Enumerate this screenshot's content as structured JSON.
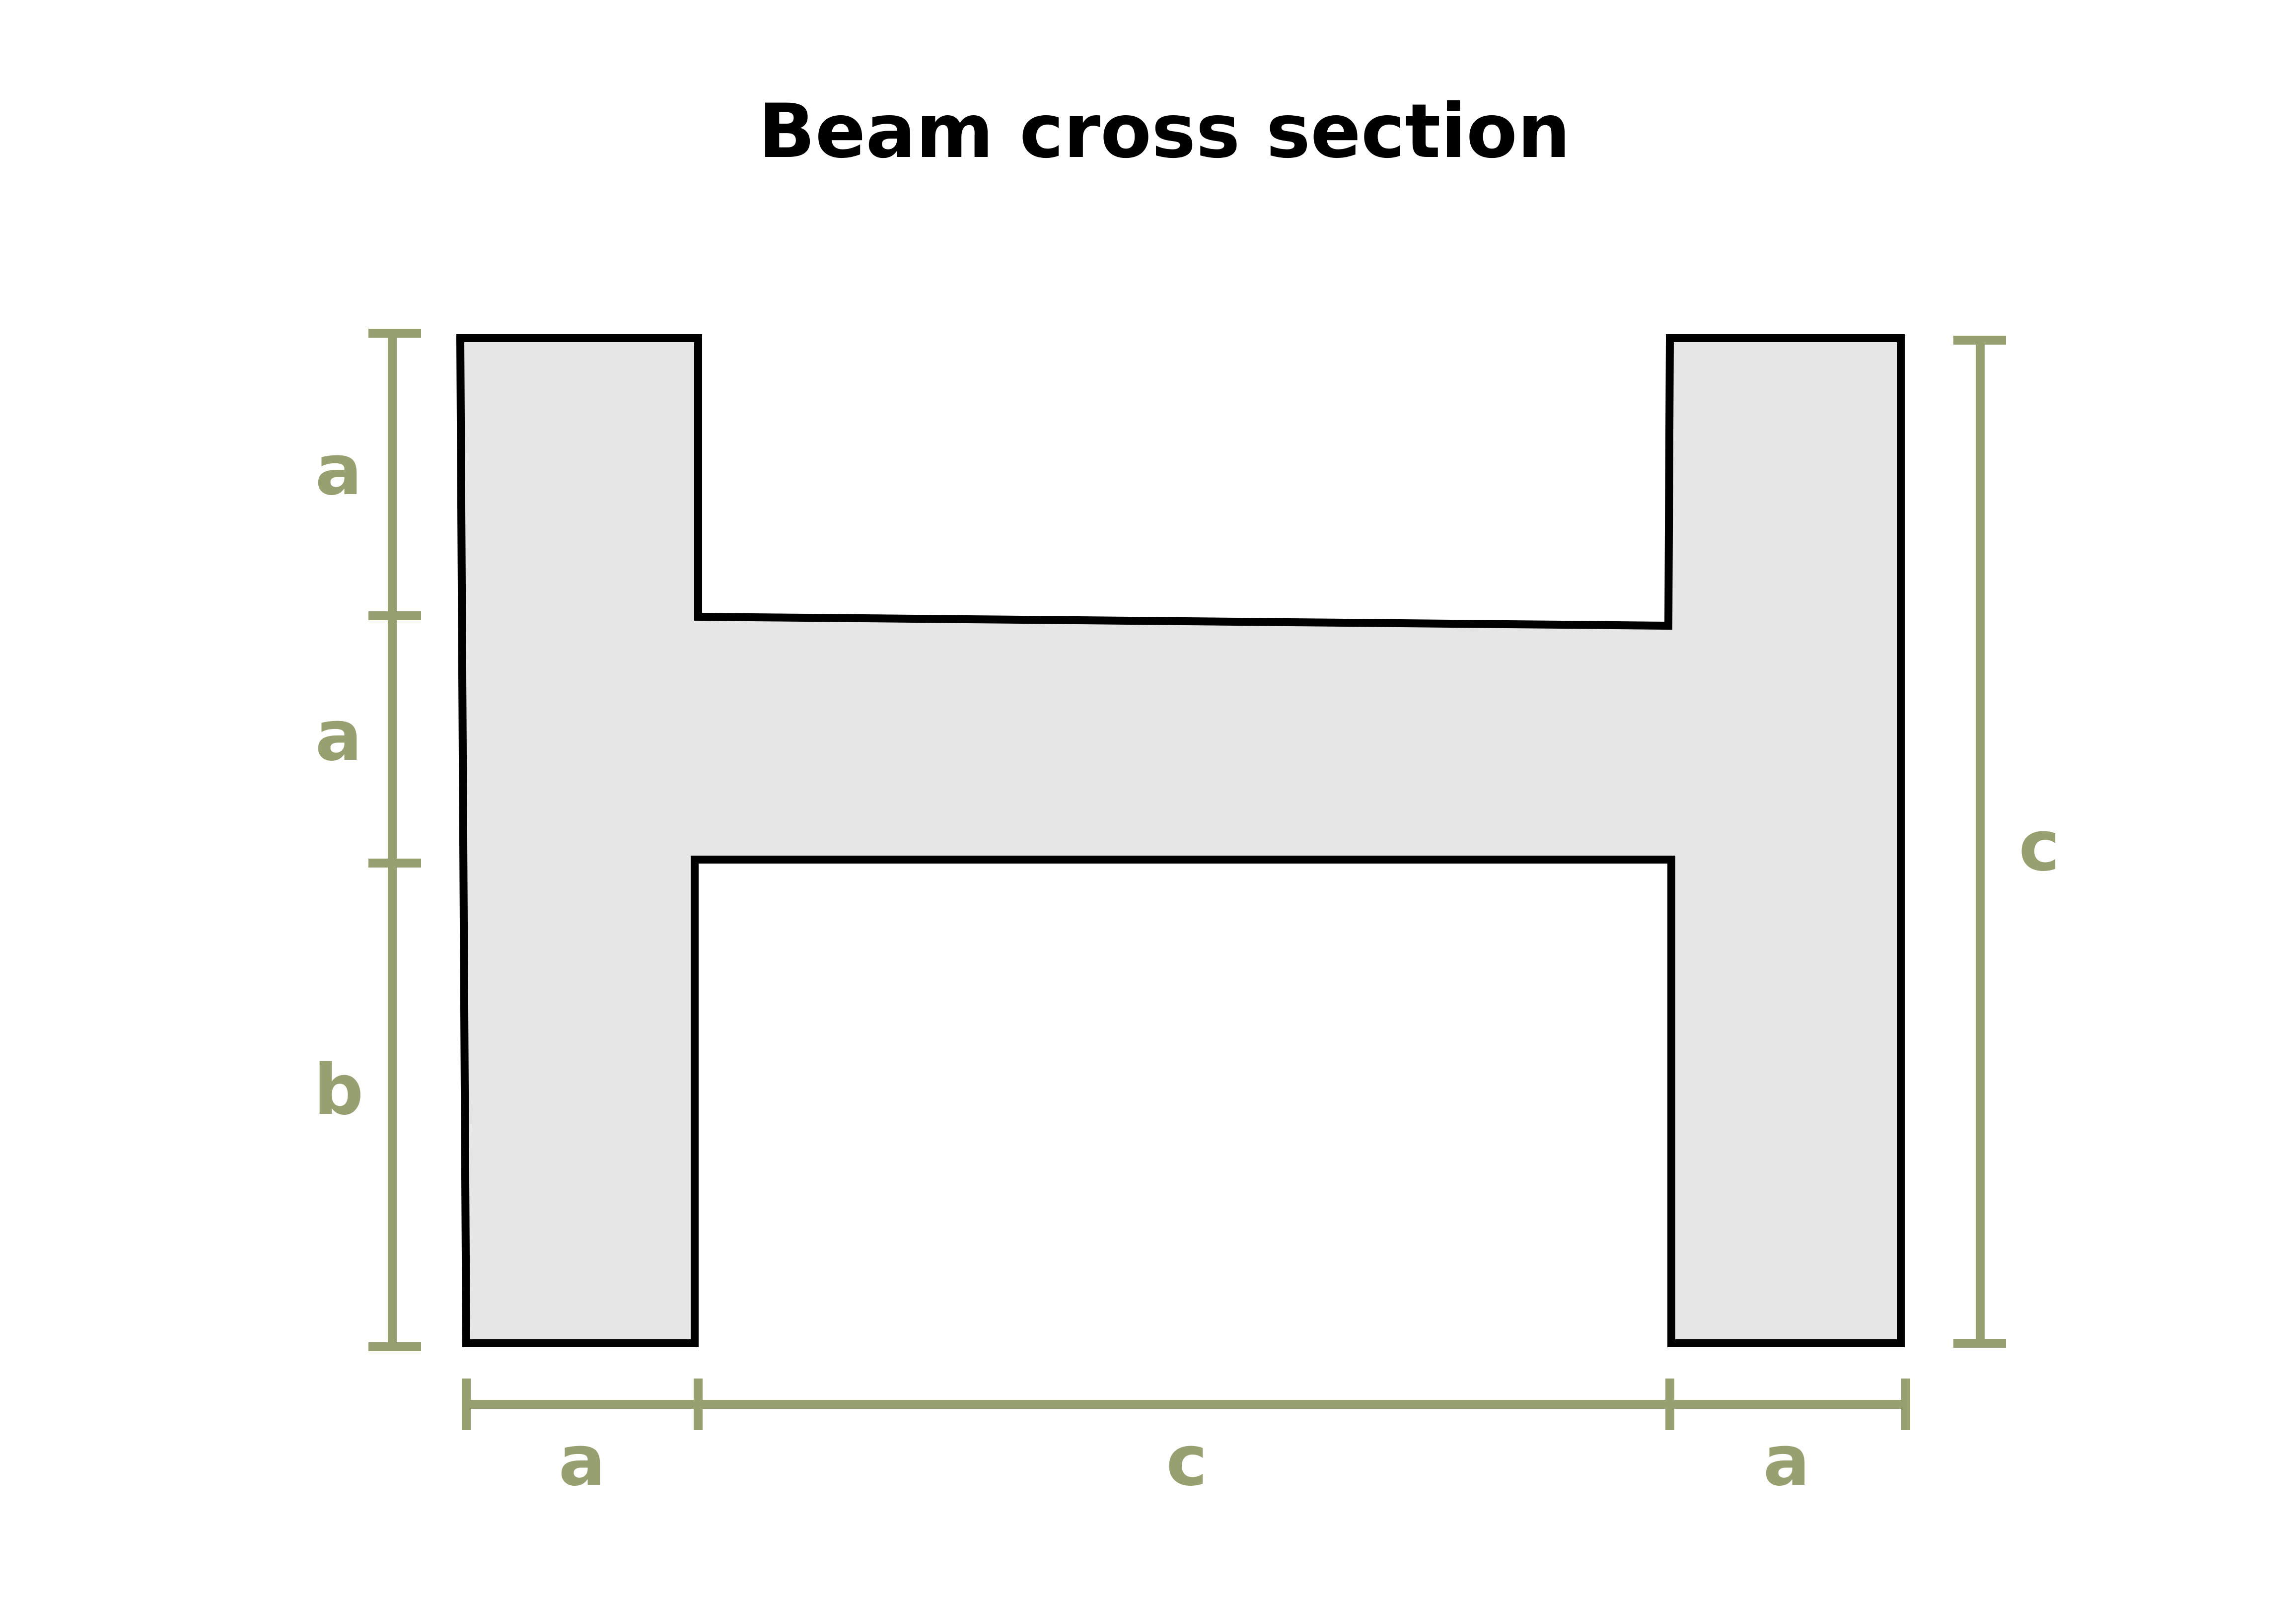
{
  "title": "Beam cross section",
  "labels": {
    "left_top": "a",
    "left_middle": "a",
    "left_bottom": "b",
    "right": "c",
    "bottom_left": "a",
    "bottom_center": "c",
    "bottom_right": "a"
  },
  "colors": {
    "outline": "#000000",
    "fill": "#e6e6e6",
    "dimension": "#97a070",
    "title": "#000000",
    "background": "#ffffff"
  }
}
